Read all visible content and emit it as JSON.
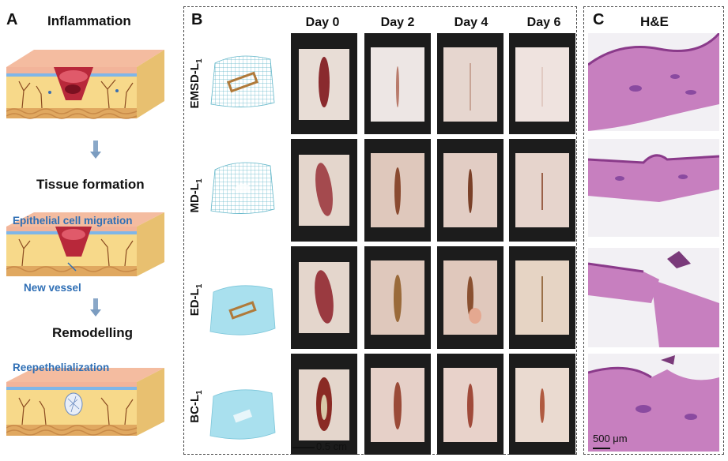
{
  "panel_a": {
    "letter": "A",
    "stages": [
      "Inflammation",
      "Tissue formation",
      "Remodelling"
    ],
    "annotations": {
      "epithelial_migration": "Epithelial cell migration",
      "new_vessel": "New vessel",
      "reepithelialization": "Reepethelialization"
    }
  },
  "panel_b": {
    "letter": "B",
    "days": [
      "Day 0",
      "Day 2",
      "Day 4",
      "Day 6"
    ],
    "rows": [
      {
        "label": "EMSD-L",
        "sub": "1"
      },
      {
        "label": "MD-L",
        "sub": "1"
      },
      {
        "label": "ED-L",
        "sub": "1"
      },
      {
        "label": "BC-L",
        "sub": "1"
      }
    ],
    "scale_label": "0.5 cm"
  },
  "panel_c": {
    "letter": "C",
    "title": "H&E",
    "scale_label": "500 μm"
  },
  "colors": {
    "dash_border": "#444444",
    "accent_blue": "#2f6fb5",
    "photo_frame": "#1c1c1c",
    "he_pink": "#c77fbf"
  }
}
